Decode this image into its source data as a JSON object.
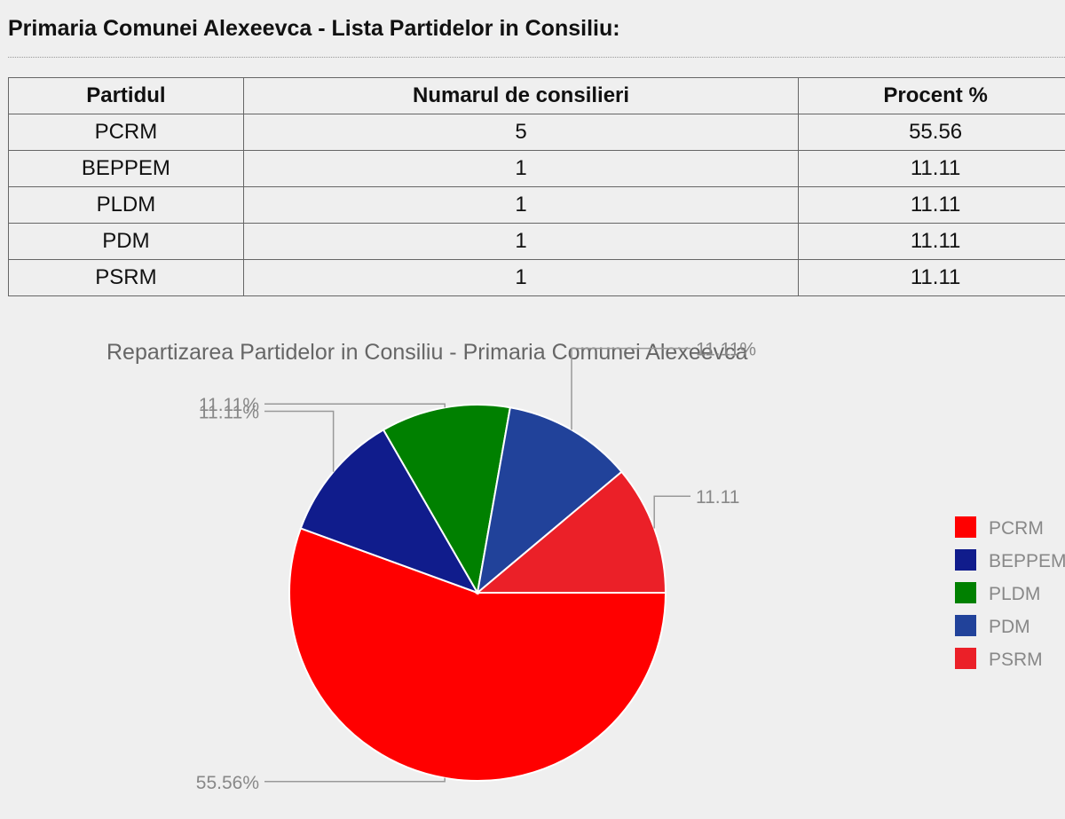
{
  "page": {
    "title": "Primaria Comunei Alexeevca - Lista Partidelor in Consiliu:"
  },
  "table": {
    "headers": [
      "Partidul",
      "Numarul de consilieri",
      "Procent %"
    ],
    "rows": [
      [
        "PCRM",
        "5",
        "55.56"
      ],
      [
        "BEPPEM",
        "1",
        "11.11"
      ],
      [
        "PLDM",
        "1",
        "11.11"
      ],
      [
        "PDM",
        "1",
        "11.11"
      ],
      [
        "PSRM",
        "1",
        "11.11"
      ]
    ]
  },
  "chart_data": {
    "type": "pie",
    "title": "Repartizarea Partidelor in Consiliu - Primaria Comunei Alexeevca",
    "categories": [
      "PCRM",
      "BEPPEM",
      "PLDM",
      "PDM",
      "PSRM"
    ],
    "values": [
      55.56,
      11.11,
      11.11,
      11.11,
      11.11
    ],
    "slice_labels": [
      "55.56%",
      "11.11%",
      "11.11%",
      "11.11%",
      "11.11"
    ],
    "colors": [
      "#ff0000",
      "#101c8c",
      "#008000",
      "#21429a",
      "#eb2028"
    ],
    "legend": "right"
  }
}
